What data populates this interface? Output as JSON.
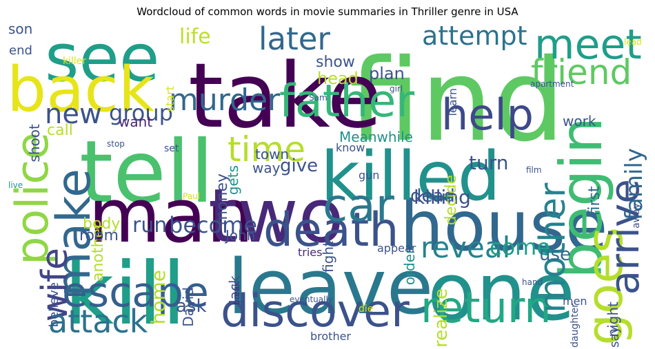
{
  "chart_data": {
    "type": "wordcloud",
    "title": "Wordcloud of common words in movie summaries in Thriller genre in USA",
    "colormap": [
      "#440154",
      "#482878",
      "#3e4989",
      "#31688e",
      "#26828e",
      "#1f9e89",
      "#35b779",
      "#6ece58",
      "#b5de2b",
      "#fde725"
    ],
    "words": [
      {
        "text": "find",
        "weight": 100,
        "color": "#5ec962",
        "rot": 0
      },
      {
        "text": "take",
        "weight": 92,
        "color": "#440154",
        "rot": 0
      },
      {
        "text": "tell",
        "weight": 90,
        "color": "#4ac16d",
        "rot": 0
      },
      {
        "text": "kill",
        "weight": 90,
        "color": "#1f9e89",
        "rot": 0
      },
      {
        "text": "man",
        "weight": 80,
        "color": "#440154",
        "rot": 0
      },
      {
        "text": "two",
        "weight": 80,
        "color": "#482878",
        "rot": 0
      },
      {
        "text": "leave",
        "weight": 80,
        "color": "#2a788e",
        "rot": 0
      },
      {
        "text": "one",
        "weight": 80,
        "color": "#21918c",
        "rot": 0
      },
      {
        "text": "house",
        "weight": 78,
        "color": "#31688e",
        "rot": 0
      },
      {
        "text": "killed",
        "weight": 76,
        "color": "#21918c",
        "rot": 0
      },
      {
        "text": "see",
        "weight": 72,
        "color": "#1f9e89",
        "rot": 0
      },
      {
        "text": "back",
        "weight": 68,
        "color": "#e7e419",
        "rot": 0
      },
      {
        "text": "begin",
        "weight": 64,
        "color": "#3fbc73",
        "rot": -90
      },
      {
        "text": "police",
        "weight": 58,
        "color": "#8fd744",
        "rot": -90
      },
      {
        "text": "father",
        "weight": 56,
        "color": "#35b779",
        "rot": 0
      },
      {
        "text": "death",
        "weight": 56,
        "color": "#3b528b",
        "rot": 0
      },
      {
        "text": "discover",
        "weight": 56,
        "color": "#3b528b",
        "rot": 0
      },
      {
        "text": "escape",
        "weight": 54,
        "color": "#355f8d",
        "rot": 0
      },
      {
        "text": "return",
        "weight": 54,
        "color": "#22a884",
        "rot": 0
      },
      {
        "text": "car",
        "weight": 54,
        "color": "#2a788e",
        "rot": 0
      },
      {
        "text": "goes",
        "weight": 54,
        "color": "#b5de2b",
        "rot": -90
      },
      {
        "text": "make",
        "weight": 52,
        "color": "#31688e",
        "rot": -90
      },
      {
        "text": "help",
        "weight": 50,
        "color": "#3e4989",
        "rot": 0
      },
      {
        "text": "meet",
        "weight": 46,
        "color": "#1f9e89",
        "rot": 0
      },
      {
        "text": "arrive",
        "weight": 44,
        "color": "#3b528b",
        "rot": -90
      },
      {
        "text": "mother",
        "weight": 40,
        "color": "#26828e",
        "rot": -90
      },
      {
        "text": "wife",
        "weight": 40,
        "color": "#414487",
        "rot": -90
      },
      {
        "text": "attack",
        "weight": 38,
        "color": "#2c728e",
        "rot": 0
      },
      {
        "text": "friend",
        "weight": 38,
        "color": "#5ec962",
        "rot": 0
      },
      {
        "text": "time",
        "weight": 38,
        "color": "#b5de2b",
        "rot": 0
      },
      {
        "text": "later",
        "weight": 34,
        "color": "#31688e",
        "rot": 0
      },
      {
        "text": "murder",
        "weight": 34,
        "color": "#31688e",
        "rot": 0
      },
      {
        "text": "reveal",
        "weight": 30,
        "color": "#26828e",
        "rot": 0
      },
      {
        "text": "new",
        "weight": 30,
        "color": "#3b528b",
        "rot": 0
      },
      {
        "text": "attempt",
        "weight": 28,
        "color": "#2c728e",
        "rot": 0
      },
      {
        "text": "family",
        "weight": 26,
        "color": "#31688e",
        "rot": -90
      },
      {
        "text": "group",
        "weight": 24,
        "color": "#3b528b",
        "rot": 0
      },
      {
        "text": "become",
        "weight": 24,
        "color": "#3b528b",
        "rot": 0
      },
      {
        "text": "come",
        "weight": 24,
        "color": "#1f9e89",
        "rot": 0
      },
      {
        "text": "life",
        "weight": 22,
        "color": "#bddf26",
        "rot": 0
      },
      {
        "text": "run",
        "weight": 22,
        "color": "#3b528b",
        "rot": 0
      },
      {
        "text": "home",
        "weight": 20,
        "color": "#b5de2b",
        "rot": -90
      },
      {
        "text": "killing",
        "weight": 20,
        "color": "#3b528b",
        "rot": 0
      },
      {
        "text": "turn",
        "weight": 20,
        "color": "#3b528b",
        "rot": 0
      },
      {
        "text": "realize",
        "weight": 20,
        "color": "#b5de2b",
        "rot": -90
      },
      {
        "text": "give",
        "weight": 18,
        "color": "#3b528b",
        "rot": 0
      },
      {
        "text": "dead",
        "weight": 18,
        "color": "#3b528b",
        "rot": 0
      },
      {
        "text": "ask",
        "weight": 18,
        "color": "#3b528b",
        "rot": 0
      },
      {
        "text": "use",
        "weight": 18,
        "color": "#31688e",
        "rot": 0
      },
      {
        "text": "plan",
        "weight": 18,
        "color": "#3b528b",
        "rot": 0
      },
      {
        "text": "head",
        "weight": 18,
        "color": "#b5de2b",
        "rot": 0
      },
      {
        "text": "first",
        "weight": 16,
        "color": "#31688e",
        "rot": -90
      },
      {
        "text": "decide",
        "weight": 16,
        "color": "#b5de2b",
        "rot": -90
      },
      {
        "text": "another",
        "weight": 16,
        "color": "#b5de2b",
        "rot": -90
      },
      {
        "text": "money",
        "weight": 16,
        "color": "#3b528b",
        "rot": -90
      },
      {
        "text": "body",
        "weight": 16,
        "color": "#b5de2b",
        "rot": 0
      },
      {
        "text": "call",
        "weight": 16,
        "color": "#b5de2b",
        "rot": 0
      },
      {
        "text": "room",
        "weight": 16,
        "color": "#3b528b",
        "rot": 0
      },
      {
        "text": "show",
        "weight": 16,
        "color": "#3b528b",
        "rot": 0
      },
      {
        "text": "Jack",
        "weight": 14,
        "color": "#3b528b",
        "rot": -90
      },
      {
        "text": "David",
        "weight": 14,
        "color": "#3b528b",
        "rot": -90
      },
      {
        "text": "John",
        "weight": 14,
        "color": "#3b528b",
        "rot": 0
      },
      {
        "text": "shoot",
        "weight": 14,
        "color": "#3b528b",
        "rot": -90
      },
      {
        "text": "town",
        "weight": 14,
        "color": "#3b528b",
        "rot": 0
      },
      {
        "text": "gets",
        "weight": 14,
        "color": "#21918c",
        "rot": -90
      },
      {
        "text": "want",
        "weight": 14,
        "color": "#482878",
        "rot": 0
      },
      {
        "text": "order",
        "weight": 14,
        "color": "#21918c",
        "rot": -90
      },
      {
        "text": "night",
        "weight": 14,
        "color": "#3b528b",
        "rot": -90
      },
      {
        "text": "work",
        "weight": 14,
        "color": "#3b528b",
        "rot": 0
      },
      {
        "text": "way",
        "weight": 14,
        "color": "#3b528b",
        "rot": 0
      },
      {
        "text": "fight",
        "weight": 14,
        "color": "#3b528b",
        "rot": -90
      },
      {
        "text": "Meanwhile",
        "weight": 14,
        "color": "#21918c",
        "rot": 0
      },
      {
        "text": "say",
        "weight": 14,
        "color": "#3b528b",
        "rot": -90
      },
      {
        "text": "son",
        "weight": 14,
        "color": "#3b528b",
        "rot": 0
      },
      {
        "text": "end",
        "weight": 12,
        "color": "#3b528b",
        "rot": 0
      },
      {
        "text": "believe",
        "weight": 12,
        "color": "#3b528b",
        "rot": -90
      },
      {
        "text": "start",
        "weight": 12,
        "color": "#d8e219",
        "rot": -90
      },
      {
        "text": "learn",
        "weight": 12,
        "color": "#3b528b",
        "rot": -90
      },
      {
        "text": "tries",
        "weight": 12,
        "color": "#482878",
        "rot": 0
      },
      {
        "text": "brother",
        "weight": 12,
        "color": "#3b528b",
        "rot": 0
      },
      {
        "text": "appear",
        "weight": 12,
        "color": "#3b528b",
        "rot": 0
      },
      {
        "text": "gun",
        "weight": 12,
        "color": "#3b528b",
        "rot": 0
      },
      {
        "text": "know",
        "weight": 12,
        "color": "#3b528b",
        "rot": 0
      },
      {
        "text": "men",
        "weight": 12,
        "color": "#3b528b",
        "rot": 0
      },
      {
        "text": "daughter",
        "weight": 11,
        "color": "#3b528b",
        "rot": -90
      },
      {
        "text": "killer",
        "weight": 11,
        "color": "#d8e219",
        "rot": 0
      },
      {
        "text": "set",
        "weight": 10,
        "color": "#3b528b",
        "rot": 0
      },
      {
        "text": "away",
        "weight": 10,
        "color": "#3b528b",
        "rot": -90
      },
      {
        "text": "apartment",
        "weight": 10,
        "color": "#3b528b",
        "rot": 0
      },
      {
        "text": "girl",
        "weight": 10,
        "color": "#3b528b",
        "rot": 0
      },
      {
        "text": "die",
        "weight": 10,
        "color": "#d8e219",
        "rot": 0
      },
      {
        "text": "eventually",
        "weight": 10,
        "color": "#3b528b",
        "rot": 0
      },
      {
        "text": "break",
        "weight": 9,
        "color": "#482878",
        "rot": -90
      },
      {
        "text": "hand",
        "weight": 9,
        "color": "#3b528b",
        "rot": 0
      },
      {
        "text": "film",
        "weight": 9,
        "color": "#3b528b",
        "rot": 0
      },
      {
        "text": "Sam",
        "weight": 9,
        "color": "#3b528b",
        "rot": 0
      },
      {
        "text": "Paul",
        "weight": 9,
        "color": "#d8e219",
        "rot": 0
      },
      {
        "text": "stop",
        "weight": 9,
        "color": "#3b528b",
        "rot": 0
      },
      {
        "text": "live",
        "weight": 9,
        "color": "#21918c",
        "rot": 0
      },
      {
        "text": "lead",
        "weight": 9,
        "color": "#d8e219",
        "rot": 0
      }
    ]
  }
}
